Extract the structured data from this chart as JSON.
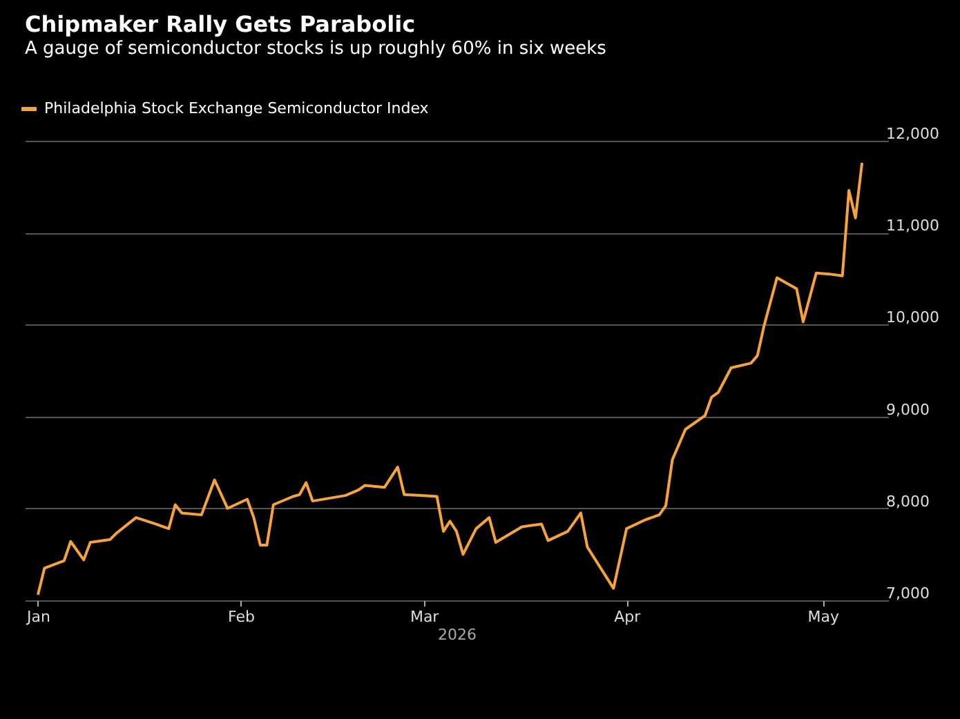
{
  "chart_data": {
    "type": "line",
    "title": "Chipmaker Rally Gets Parabolic",
    "subtitle": "A gauge of semiconductor stocks is up roughly 60% in six weeks",
    "xlabel": "2026",
    "x": [
      "2026-01-01",
      "2026-01-02",
      "2026-01-05",
      "2026-01-06",
      "2026-01-08",
      "2026-01-09",
      "2026-01-12",
      "2026-01-13",
      "2026-01-16",
      "2026-01-19",
      "2026-01-21",
      "2026-01-22",
      "2026-01-23",
      "2026-01-26",
      "2026-01-28",
      "2026-01-30",
      "2026-02-02",
      "2026-02-03",
      "2026-02-04",
      "2026-02-05",
      "2026-02-06",
      "2026-02-09",
      "2026-02-10",
      "2026-02-11",
      "2026-02-12",
      "2026-02-17",
      "2026-02-19",
      "2026-02-20",
      "2026-02-23",
      "2026-02-25",
      "2026-02-26",
      "2026-03-01",
      "2026-03-03",
      "2026-03-04",
      "2026-03-05",
      "2026-03-06",
      "2026-03-07",
      "2026-03-09",
      "2026-03-11",
      "2026-03-12",
      "2026-03-16",
      "2026-03-19",
      "2026-03-20",
      "2026-03-23",
      "2026-03-25",
      "2026-03-26",
      "2026-03-30",
      "2026-04-01",
      "2026-04-04",
      "2026-04-06",
      "2026-04-07",
      "2026-04-08",
      "2026-04-10",
      "2026-04-13",
      "2026-04-14",
      "2026-04-15",
      "2026-04-17",
      "2026-04-20",
      "2026-04-21",
      "2026-04-22",
      "2026-04-24",
      "2026-04-27",
      "2026-04-28",
      "2026-04-30",
      "2026-05-02",
      "2026-05-04",
      "2026-05-05",
      "2026-05-06",
      "2026-05-07"
    ],
    "series": [
      {
        "name": "Philadelphia Stock Exchange Semiconductor Index",
        "color": "#f5a33a",
        "values": [
          7060,
          7350,
          7430,
          7640,
          7440,
          7630,
          7660,
          7730,
          7900,
          7830,
          7780,
          8040,
          7950,
          7930,
          8310,
          8000,
          8100,
          7900,
          7600,
          7600,
          8040,
          8130,
          8150,
          8280,
          8080,
          8140,
          8200,
          8250,
          8230,
          8450,
          8150,
          8140,
          8130,
          7750,
          7860,
          7750,
          7500,
          7780,
          7900,
          7630,
          7800,
          7830,
          7650,
          7750,
          7950,
          7580,
          7130,
          7780,
          7880,
          7930,
          8030,
          8530,
          8860,
          9010,
          9210,
          9260,
          9530,
          9580,
          9660,
          9980,
          10510,
          10390,
          10030,
          10560,
          10550,
          10530,
          11460,
          11160,
          11760
        ]
      }
    ],
    "xlim": [
      "2025-12-30",
      "2026-05-11"
    ],
    "xticks": [
      {
        "value": "2026-01-01",
        "label": "Jan"
      },
      {
        "value": "2026-02-01",
        "label": "Feb"
      },
      {
        "value": "2026-03-01",
        "label": "Mar"
      },
      {
        "value": "2026-04-01",
        "label": "Apr"
      },
      {
        "value": "2026-05-01",
        "label": "May"
      }
    ],
    "ylim": [
      7000,
      12000
    ],
    "yticks": [
      {
        "value": 7000,
        "label": "7,000"
      },
      {
        "value": 8000,
        "label": "8,000"
      },
      {
        "value": 9000,
        "label": "9,000"
      },
      {
        "value": 10000,
        "label": "10,000"
      },
      {
        "value": 11000,
        "label": "11,000"
      },
      {
        "value": 12000,
        "label": "12,000"
      }
    ],
    "grid": "y",
    "legend": "top left",
    "marker": "none",
    "line_style": "solid"
  }
}
